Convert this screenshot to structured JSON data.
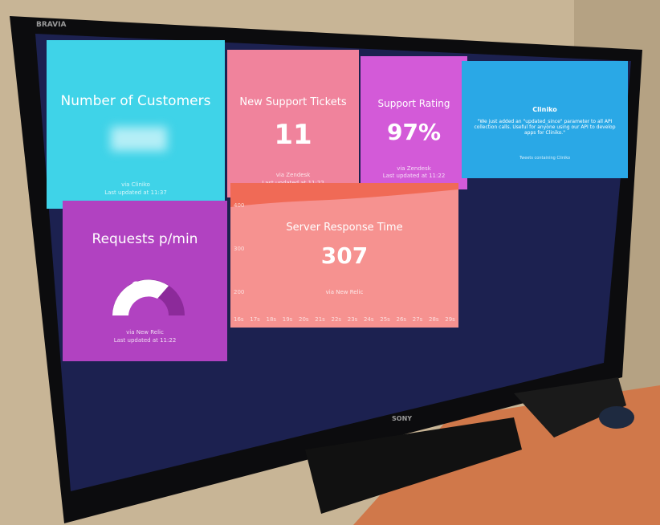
{
  "tv": {
    "model": "BRAVIA",
    "brand": "SONY"
  },
  "tiles": {
    "customers": {
      "title": "Number of Customers",
      "source": "via Cliniko",
      "updated": "Last updated at 11:37"
    },
    "tickets": {
      "title": "New Support Tickets",
      "value": "11",
      "source": "via Zendesk",
      "updated": "Last updated at 11:22"
    },
    "rating": {
      "title": "Support Rating",
      "value": "97%",
      "source": "via Zendesk",
      "updated": "Last updated at 11:22"
    },
    "twitter": {
      "account": "Cliniko",
      "text": "\"We just added an \"updated_since\" parameter to all API collection calls. Useful for anyone using our API to develop apps for Cliniko.\"",
      "footer": "Tweets containing Cliniko"
    },
    "requests": {
      "title": "Requests p/min",
      "value": "636",
      "source": "via New Relic",
      "updated": "Last updated at 11:22"
    },
    "response": {
      "title": "Server Response Time",
      "value": "307",
      "source": "via New Relic",
      "y_labels": [
        "400",
        "300",
        "200"
      ],
      "x_labels": [
        "16s",
        "17s",
        "18s",
        "19s",
        "20s",
        "21s",
        "22s",
        "23s",
        "24s",
        "25s",
        "26s",
        "27s",
        "28s",
        "29s"
      ]
    }
  }
}
